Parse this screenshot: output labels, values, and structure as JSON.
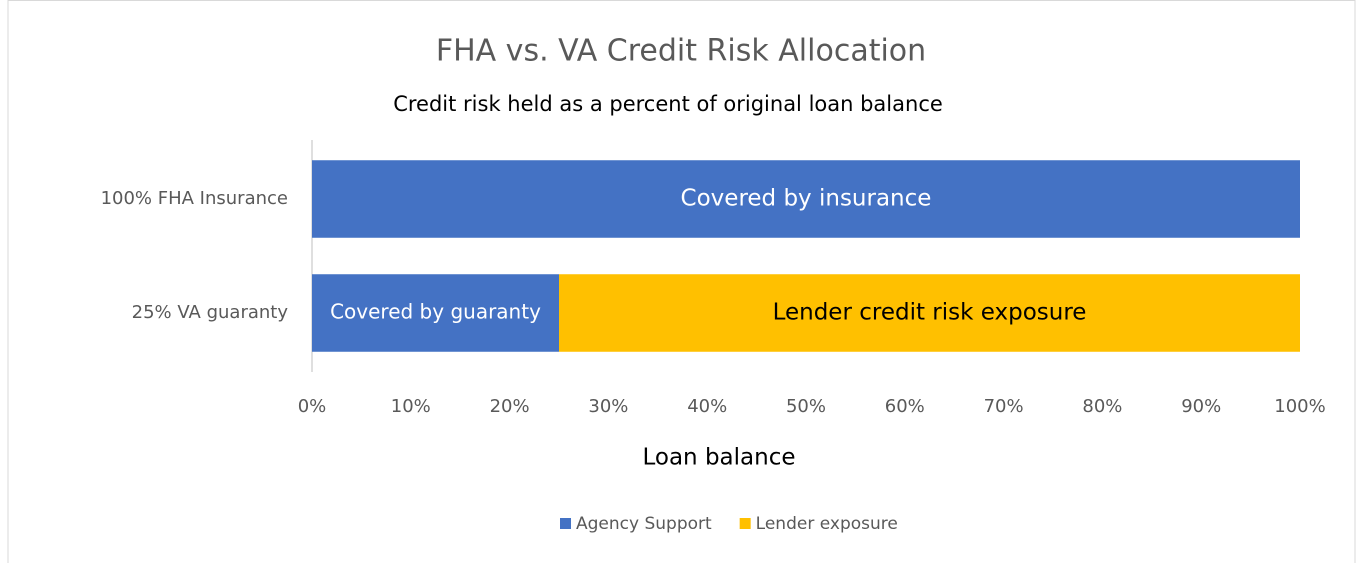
{
  "chart_data": {
    "type": "stacked_bar_horizontal",
    "title": "FHA vs. VA Credit Risk Allocation",
    "subtitle": "Credit risk held as a percent of original loan balance",
    "x_label": "Loan balance",
    "categories": [
      "100% FHA Insurance",
      "25% VA guaranty"
    ],
    "series": [
      {
        "name": "Agency Support",
        "color": "#4472c4",
        "label_color": "#ffffff",
        "values": [
          100,
          25
        ],
        "labels": [
          "Covered by insurance",
          "Covered by guaranty"
        ]
      },
      {
        "name": "Lender exposure",
        "color": "#ffc000",
        "label_color": "#000000",
        "values": [
          0,
          75
        ],
        "labels": [
          null,
          "Lender credit risk exposure"
        ]
      }
    ],
    "xlim": [
      0,
      100
    ],
    "xticks": [
      {
        "value": 0,
        "label": "0%"
      },
      {
        "value": 10,
        "label": "10%"
      },
      {
        "value": 20,
        "label": "20%"
      },
      {
        "value": 30,
        "label": "30%"
      },
      {
        "value": 40,
        "label": "40%"
      },
      {
        "value": 50,
        "label": "50%"
      },
      {
        "value": 60,
        "label": "60%"
      },
      {
        "value": 70,
        "label": "70%"
      },
      {
        "value": 80,
        "label": "80%"
      },
      {
        "value": 90,
        "label": "90%"
      },
      {
        "value": 100,
        "label": "100%"
      }
    ],
    "grid": false,
    "legend": "bottom"
  }
}
